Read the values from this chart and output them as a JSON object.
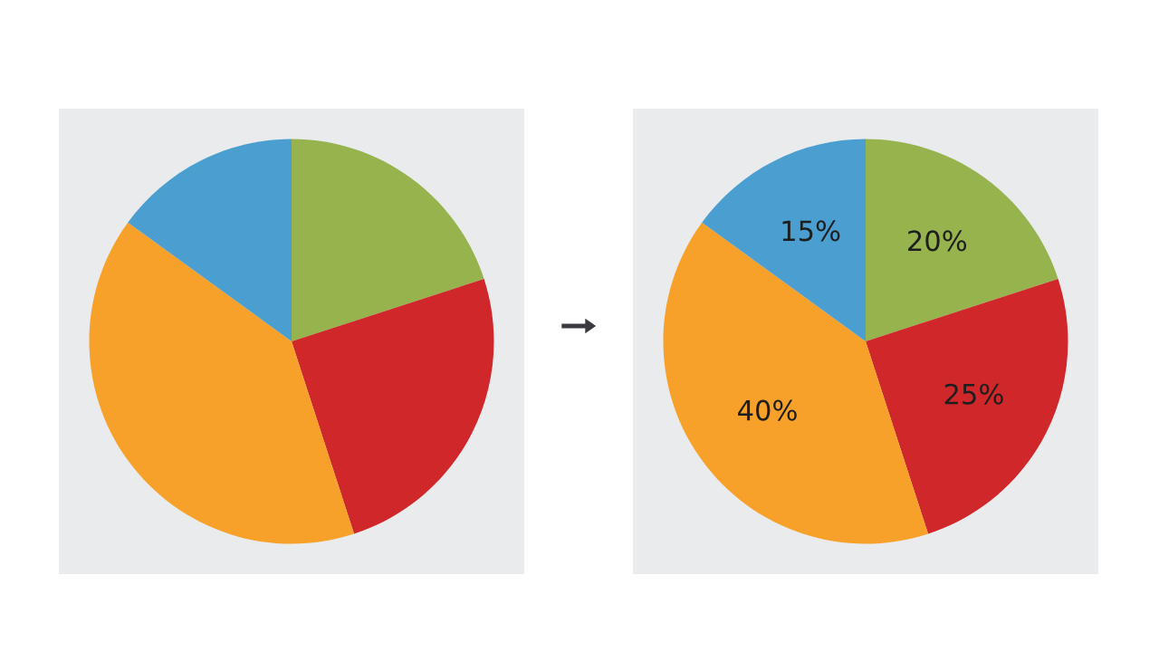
{
  "chart_data": [
    {
      "type": "pie",
      "categories": [
        null,
        null,
        null,
        null
      ],
      "values": [
        20,
        25,
        40,
        15
      ],
      "colors": [
        "#96b34e",
        "#d0272a",
        "#f7a12a",
        "#4a9fd0"
      ]
    },
    {
      "type": "pie",
      "categories": [
        null,
        null,
        null,
        null
      ],
      "values": [
        20,
        25,
        40,
        15
      ],
      "colors": [
        "#96b34e",
        "#d0272a",
        "#f7a12a",
        "#4a9fd0"
      ],
      "value_labels": [
        "20%",
        "25%",
        "40%",
        "15%"
      ]
    }
  ]
}
